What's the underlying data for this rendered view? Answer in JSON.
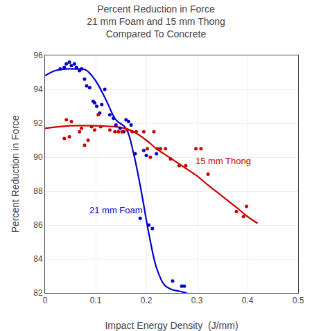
{
  "chart_data": {
    "type": "scatter",
    "title": "Percent Reduction in Force\n21 mm Foam and 15 mm Thong\nCompared To Concrete",
    "xlabel": "Impact Energy Density  (J/mm)",
    "ylabel": "Percent Reduction in Force",
    "xlim": [
      0,
      0.5
    ],
    "ylim": [
      82,
      96
    ],
    "xticks": [
      0.0,
      0.1,
      0.2,
      0.3,
      0.4,
      0.5
    ],
    "yticks": [
      82,
      84,
      86,
      88,
      90,
      92,
      94,
      96
    ],
    "grid": true,
    "series": [
      {
        "type": "line",
        "color": "#0000CC",
        "line_style": "solid",
        "x": [
          0.0,
          0.02,
          0.04,
          0.06,
          0.08,
          0.1,
          0.12,
          0.14,
          0.16,
          0.175,
          0.19,
          0.205,
          0.22,
          0.235,
          0.25,
          0.265,
          0.28
        ],
        "values": [
          94.8,
          95.1,
          95.2,
          95.2,
          95.15,
          94.5,
          93.4,
          92.2,
          91.7,
          90.2,
          88.0,
          85.5,
          83.5,
          82.5,
          82.2,
          82.1,
          82.0
        ]
      },
      {
        "type": "line",
        "color": "#CC0000",
        "line_style": "solid",
        "x": [
          0.0,
          0.05,
          0.1,
          0.15,
          0.175,
          0.2,
          0.22,
          0.24,
          0.26,
          0.28,
          0.3,
          0.32,
          0.35,
          0.38,
          0.4,
          0.42
        ],
        "values": [
          91.7,
          91.85,
          91.85,
          91.75,
          91.5,
          91.0,
          90.5,
          90.1,
          89.7,
          89.3,
          88.9,
          88.4,
          87.7,
          87.0,
          86.5,
          86.1
        ]
      },
      {
        "type": "scatter",
        "color": "#0000CC",
        "marker": "circle",
        "x": [
          0.03,
          0.038,
          0.042,
          0.048,
          0.052,
          0.058,
          0.062,
          0.068,
          0.072,
          0.078,
          0.082,
          0.088,
          0.095,
          0.098,
          0.102,
          0.108,
          0.112,
          0.118,
          0.128,
          0.135,
          0.14,
          0.148,
          0.155,
          0.16,
          0.165,
          0.17,
          0.178,
          0.188,
          0.195,
          0.2,
          0.205,
          0.212,
          0.22,
          0.252,
          0.27,
          0.275
        ],
        "values": [
          95.2,
          95.3,
          95.5,
          95.6,
          95.4,
          95.5,
          95.3,
          95.1,
          95.2,
          94.6,
          94.2,
          94.1,
          93.3,
          93.2,
          93.0,
          92.6,
          93.1,
          94.0,
          92.5,
          92.3,
          91.9,
          91.7,
          91.5,
          92.2,
          92.1,
          91.9,
          90.2,
          86.4,
          90.4,
          90.1,
          86.0,
          85.8,
          90.2,
          82.7,
          82.4,
          82.4
        ]
      },
      {
        "type": "scatter",
        "color": "#CC0000",
        "marker": "circle",
        "x": [
          0.038,
          0.042,
          0.048,
          0.052,
          0.068,
          0.072,
          0.078,
          0.085,
          0.092,
          0.098,
          0.105,
          0.11,
          0.128,
          0.138,
          0.145,
          0.152,
          0.162,
          0.172,
          0.18,
          0.195,
          0.202,
          0.208,
          0.215,
          0.222,
          0.228,
          0.238,
          0.248,
          0.265,
          0.278,
          0.298,
          0.308,
          0.322,
          0.378,
          0.392,
          0.398
        ],
        "values": [
          91.1,
          92.2,
          91.2,
          92.1,
          91.5,
          91.7,
          90.7,
          91.0,
          91.8,
          91.6,
          92.5,
          91.8,
          91.6,
          91.5,
          91.5,
          91.5,
          91.6,
          91.5,
          91.5,
          91.5,
          90.5,
          90.0,
          91.5,
          90.5,
          90.5,
          90.5,
          89.9,
          89.5,
          89.5,
          90.5,
          90.5,
          89.0,
          86.8,
          86.5,
          87.1
        ]
      }
    ],
    "annotations": [
      {
        "text": "21 mm Foam",
        "x": 0.085,
        "y": 86.5,
        "color": "#0000CC"
      },
      {
        "text": "15 mm Thong",
        "x": 0.295,
        "y": 89.4,
        "color": "#CC0000"
      }
    ]
  }
}
